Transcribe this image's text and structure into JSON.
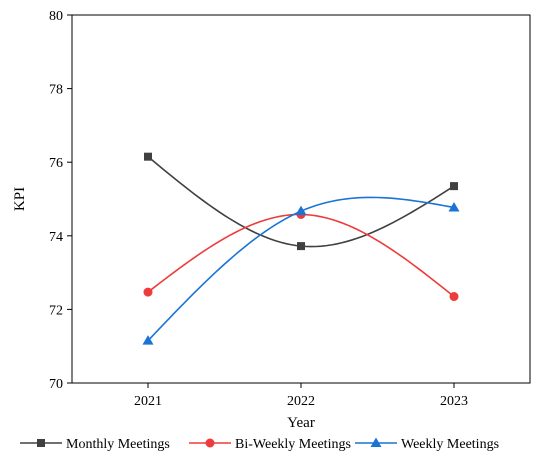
{
  "chart_data": {
    "type": "line",
    "title": "",
    "xlabel": "Year",
    "ylabel": "KPI",
    "categories": [
      "2021",
      "2022",
      "2023"
    ],
    "ylim": [
      70,
      80
    ],
    "yticks": [
      70,
      72,
      74,
      76,
      78,
      80
    ],
    "grid": false,
    "legend_position": "bottom",
    "smooth": true,
    "series": [
      {
        "name": "Monthly Meetings",
        "values": [
          76.15,
          73.72,
          75.35
        ],
        "color": "#404040",
        "marker": "square"
      },
      {
        "name": "Bi-Weekly Meetings",
        "values": [
          72.47,
          74.58,
          72.35
        ],
        "color": "#ee3b3b",
        "marker": "circle"
      },
      {
        "name": "Weekly Meetings",
        "values": [
          71.15,
          74.67,
          74.77
        ],
        "color": "#1a74d6",
        "marker": "triangle"
      }
    ]
  }
}
